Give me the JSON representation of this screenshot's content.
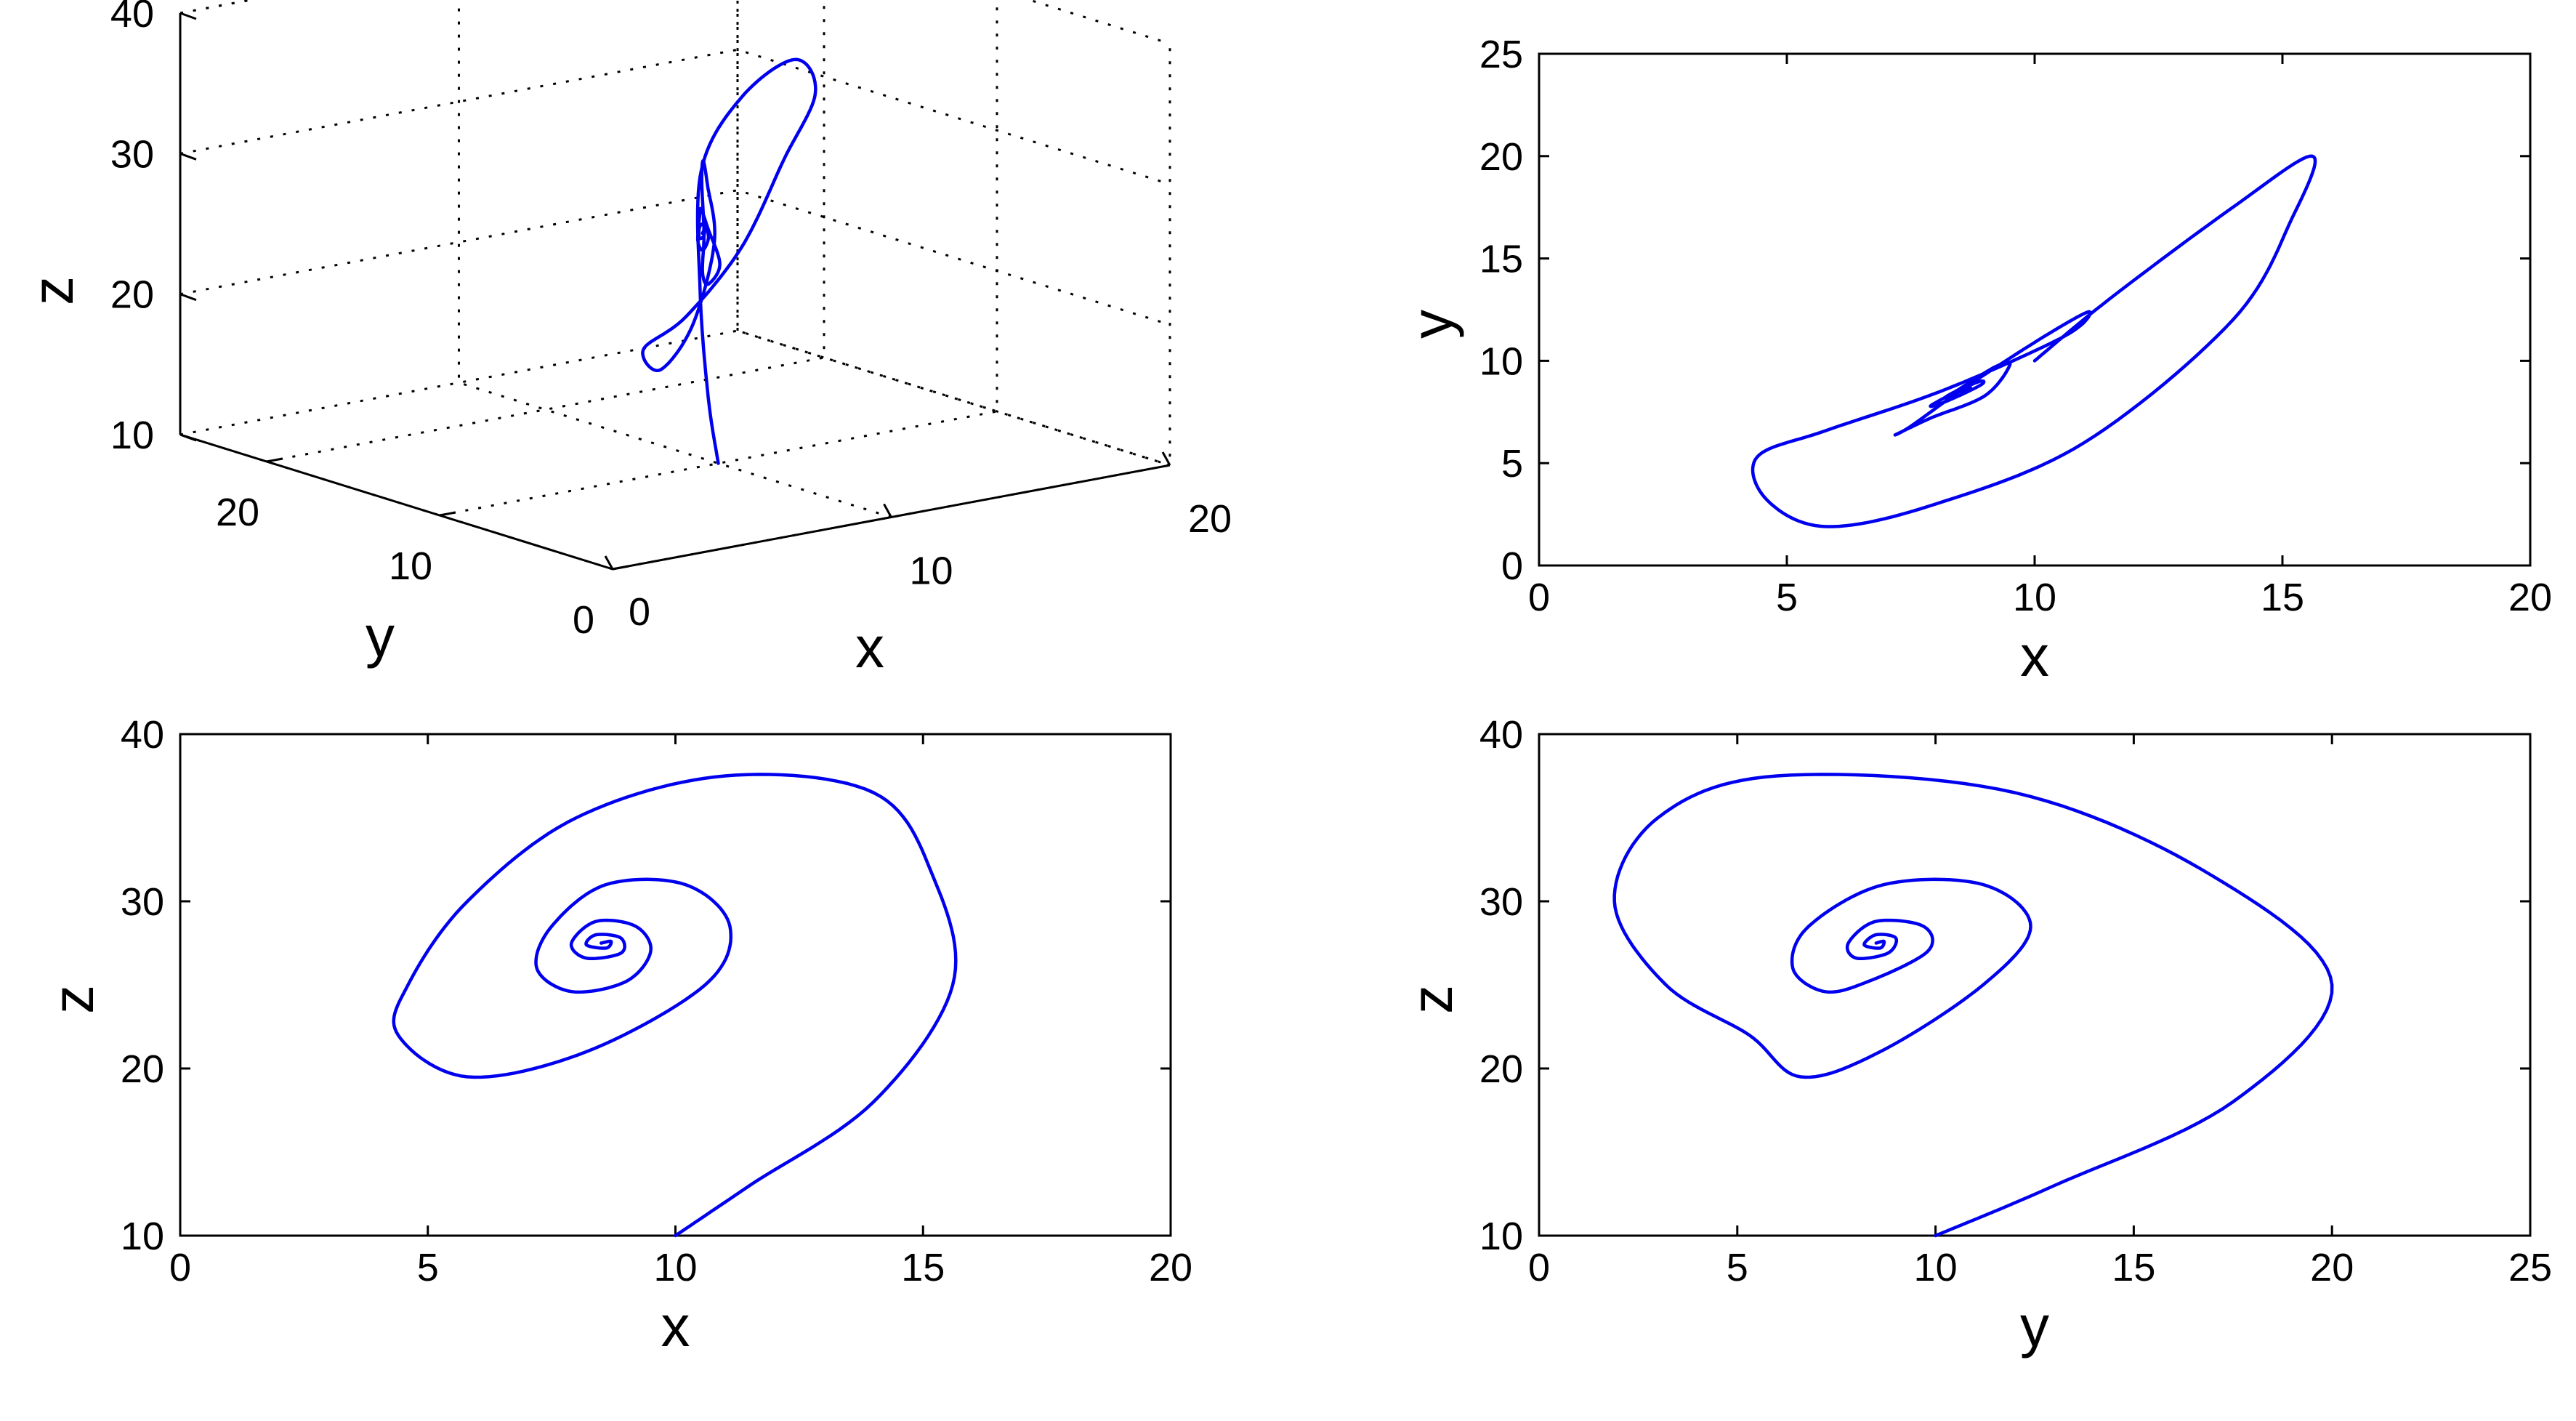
{
  "chart_data": [
    {
      "panel": "3d",
      "type": "line",
      "xlabel": "x",
      "ylabel": "y",
      "zlabel": "z",
      "xlim": [
        0,
        20
      ],
      "ylim": [
        0,
        25
      ],
      "zlim": [
        10,
        40
      ],
      "xticks": [
        0,
        10,
        20
      ],
      "yticks": [
        0,
        10,
        20
      ],
      "zticks": [
        10,
        20,
        30,
        40
      ],
      "grid": true,
      "color": "#0000ee"
    },
    {
      "panel": "xy",
      "type": "line",
      "xlabel": "x",
      "ylabel": "y",
      "xlim": [
        0,
        20
      ],
      "ylim": [
        0,
        25
      ],
      "xticks": [
        0,
        5,
        10,
        15,
        20
      ],
      "yticks": [
        0,
        5,
        10,
        15,
        20,
        25
      ],
      "grid": false,
      "color": "#0000ee"
    },
    {
      "panel": "xz",
      "type": "line",
      "xlabel": "x",
      "ylabel": "z",
      "xlim": [
        0,
        20
      ],
      "ylim": [
        10,
        40
      ],
      "xticks": [
        0,
        5,
        10,
        15,
        20
      ],
      "yticks": [
        10,
        20,
        30,
        40
      ],
      "grid": false,
      "color": "#0000ee"
    },
    {
      "panel": "yz",
      "type": "line",
      "xlabel": "y",
      "ylabel": "z",
      "xlim": [
        0,
        25
      ],
      "ylim": [
        10,
        40
      ],
      "xticks": [
        0,
        5,
        10,
        15,
        20,
        25
      ],
      "yticks": [
        10,
        20,
        30,
        40
      ],
      "grid": false,
      "color": "#0000ee"
    }
  ],
  "trajectory": {
    "start": [
      10,
      10,
      10
    ],
    "equilibrium": [
      8.5,
      8.5,
      27.5
    ],
    "points": [
      [
        10,
        10,
        10
      ],
      [
        11.5,
        13,
        13
      ],
      [
        14,
        17.5,
        18
      ],
      [
        15.6,
        20,
        25
      ],
      [
        15.2,
        17,
        31.5
      ],
      [
        14,
        12,
        36.5
      ],
      [
        11,
        6,
        37.5
      ],
      [
        8,
        3,
        35
      ],
      [
        5.8,
        1.9,
        30
      ],
      [
        4.6,
        3.2,
        25
      ],
      [
        4.4,
        5.3,
        22
      ],
      [
        5.8,
        6.6,
        19.5
      ],
      [
        8.2,
        8.6,
        21
      ],
      [
        10.6,
        11.2,
        25
      ],
      [
        11.1,
        12.4,
        28.5
      ],
      [
        10.2,
        11.2,
        31
      ],
      [
        8.6,
        8.7,
        31
      ],
      [
        7.5,
        6.8,
        28.5
      ],
      [
        7.2,
        6.4,
        26
      ],
      [
        7.9,
        7.2,
        24.6
      ],
      [
        9,
        8.3,
        25.2
      ],
      [
        9.5,
        9.8,
        27
      ],
      [
        9.2,
        9.7,
        28.5
      ],
      [
        8.4,
        8.5,
        28.8
      ],
      [
        7.9,
        7.8,
        27.5
      ],
      [
        8.2,
        8.0,
        26.6
      ],
      [
        8.9,
        8.8,
        26.9
      ],
      [
        8.9,
        9.0,
        27.8
      ],
      [
        8.4,
        8.5,
        28.0
      ],
      [
        8.2,
        8.2,
        27.4
      ],
      [
        8.6,
        8.6,
        27.2
      ],
      [
        8.7,
        8.7,
        27.6
      ],
      [
        8.5,
        8.5,
        27.5
      ]
    ]
  }
}
